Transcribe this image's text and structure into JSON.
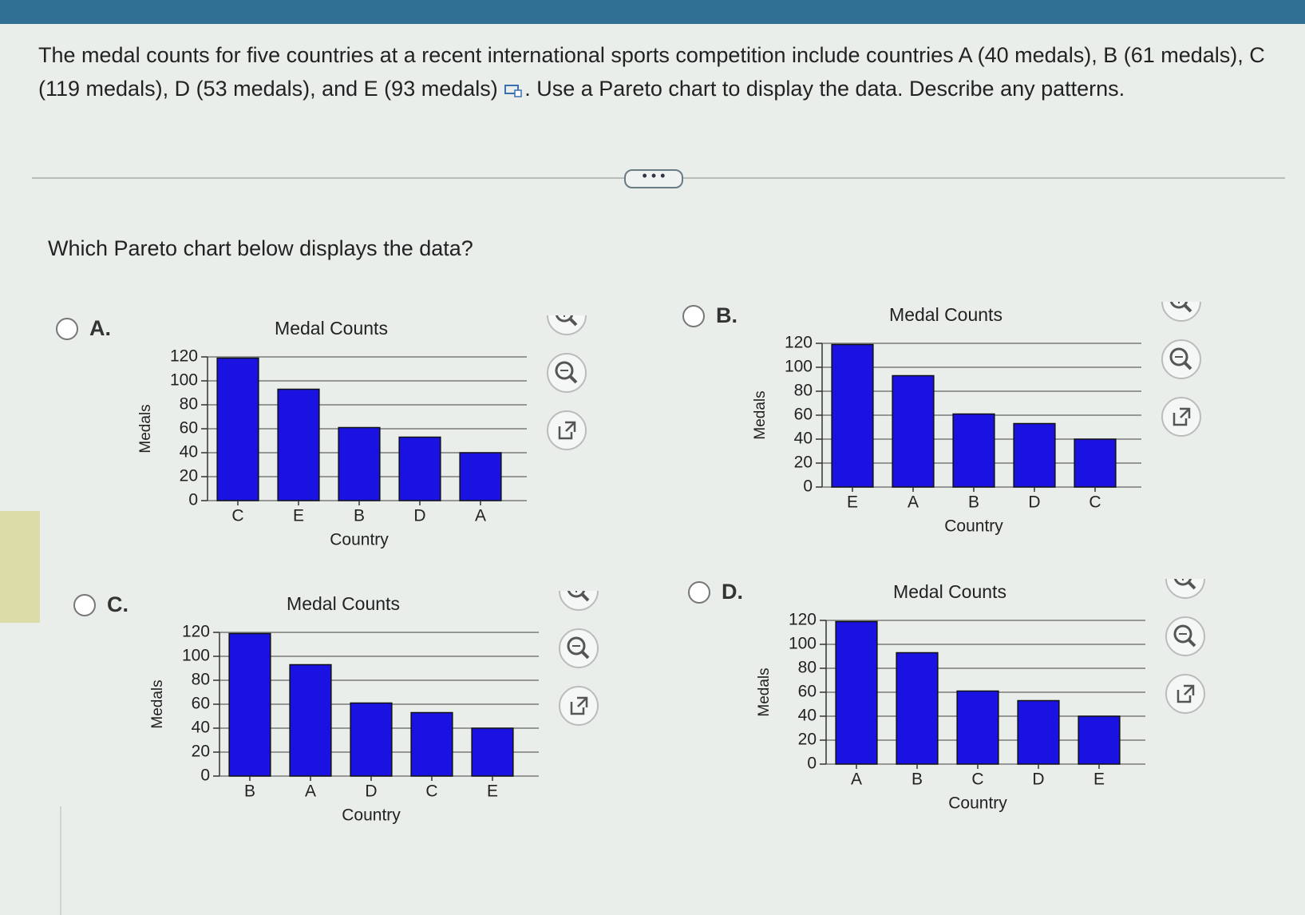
{
  "question": {
    "text": "The medal counts for five countries at a recent international sports competition include countries A (40 medals), B (61 medals), C (119 medals), D (53 medals), and E (93 medals)",
    "text_after": ". Use a Pareto chart to display the data. Describe any patterns."
  },
  "prompt": "Which Pareto chart below displays the data?",
  "options": [
    "A.",
    "B.",
    "C.",
    "D."
  ],
  "chart_data": [
    {
      "type": "bar",
      "title": "Medal Counts",
      "x_label": "Country",
      "y_label": "Medals",
      "categories": [
        "C",
        "E",
        "B",
        "D",
        "A"
      ],
      "values": [
        119,
        93,
        61,
        53,
        40
      ],
      "color": "#1a12e0",
      "ylim": [
        0,
        120
      ],
      "yticks": [
        0,
        20,
        40,
        60,
        80,
        100,
        120
      ],
      "grid": true
    },
    {
      "type": "bar",
      "title": "Medal Counts",
      "x_label": "Country",
      "y_label": "Medals",
      "categories": [
        "E",
        "A",
        "B",
        "D",
        "C"
      ],
      "values": [
        119,
        93,
        61,
        53,
        40
      ],
      "color": "#1a12e0",
      "ylim": [
        0,
        120
      ],
      "yticks": [
        0,
        20,
        40,
        60,
        80,
        100,
        120
      ],
      "grid": true
    },
    {
      "type": "bar",
      "title": "Medal Counts",
      "x_label": "Country",
      "y_label": "Medals",
      "categories": [
        "B",
        "A",
        "D",
        "C",
        "E"
      ],
      "values": [
        119,
        93,
        61,
        53,
        40
      ],
      "color": "#1a12e0",
      "ylim": [
        0,
        120
      ],
      "yticks": [
        0,
        20,
        40,
        60,
        80,
        100,
        120
      ],
      "grid": true
    },
    {
      "type": "bar",
      "title": "Medal Counts",
      "x_label": "Country",
      "y_label": "Medals",
      "categories": [
        "A",
        "B",
        "C",
        "D",
        "E"
      ],
      "values": [
        119,
        93,
        61,
        53,
        40
      ],
      "color": "#1a12e0",
      "ylim": [
        0,
        120
      ],
      "yticks": [
        0,
        20,
        40,
        60,
        80,
        100,
        120
      ],
      "grid": true
    }
  ]
}
